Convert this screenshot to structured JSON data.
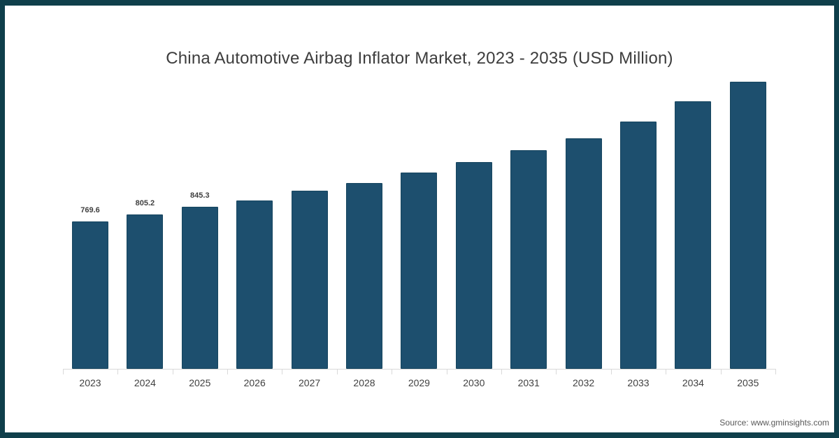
{
  "chart_data": {
    "type": "bar",
    "title": "China Automotive Airbag Inflator Market, 2023 - 2035 (USD Million)",
    "categories": [
      "2023",
      "2024",
      "2025",
      "2026",
      "2027",
      "2028",
      "2029",
      "2030",
      "2031",
      "2032",
      "2033",
      "2034",
      "2035"
    ],
    "values": [
      769.6,
      805.2,
      845.3,
      880,
      930,
      970,
      1025,
      1080,
      1140,
      1205,
      1290,
      1395,
      1500
    ],
    "data_labels": [
      "769.6",
      "805.2",
      "845.3",
      "",
      "",
      "",
      "",
      "",
      "",
      "",
      "",
      "",
      ""
    ],
    "xlabel": "",
    "ylabel": "",
    "ylim": [
      0,
      1630
    ],
    "grid": false,
    "legend": "none",
    "bar_color": "#1d4f6e",
    "bar_border_color": "#16455f",
    "axis_color": "#d9d9d9",
    "title_color": "#3d3d3d",
    "label_color": "#404040",
    "frame_color": "#0f3f4b"
  },
  "source": {
    "label": "Source: www.gminsights.com"
  }
}
